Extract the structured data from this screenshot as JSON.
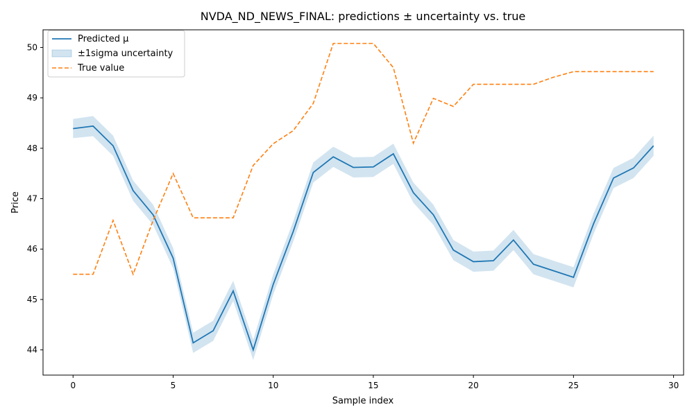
{
  "chart_data": {
    "type": "line",
    "title": "NVDA_ND_NEWS_FINAL: predictions ± uncertainty vs. true",
    "xlabel": "Sample index",
    "ylabel": "Price",
    "xlim": [
      -1.5,
      30.5
    ],
    "ylim": [
      43.5,
      50.35
    ],
    "x_ticks": [
      0,
      5,
      10,
      15,
      20,
      25,
      30
    ],
    "y_ticks": [
      44,
      45,
      46,
      47,
      48,
      49,
      50
    ],
    "grid": false,
    "legend_position": "top-left",
    "x": [
      0,
      1,
      2,
      3,
      4,
      5,
      6,
      7,
      8,
      9,
      10,
      11,
      12,
      13,
      14,
      15,
      16,
      17,
      18,
      19,
      20,
      21,
      22,
      23,
      24,
      25,
      26,
      27,
      28,
      29
    ],
    "series": [
      {
        "name": "Predicted μ",
        "style": "solid",
        "color": "#1f77b4",
        "values": [
          48.39,
          48.44,
          48.05,
          47.16,
          46.68,
          45.82,
          44.14,
          44.38,
          45.17,
          44.0,
          45.3,
          46.35,
          47.52,
          47.83,
          47.62,
          47.63,
          47.89,
          47.12,
          46.68,
          45.98,
          45.75,
          45.77,
          46.18,
          45.7,
          45.57,
          45.44,
          46.5,
          47.41,
          47.61,
          48.05
        ]
      },
      {
        "name": "±1sigma uncertainty",
        "style": "band",
        "color": "#1f77b4",
        "lower": [
          48.2,
          48.24,
          47.85,
          46.96,
          46.48,
          45.62,
          43.94,
          44.18,
          44.97,
          43.8,
          45.1,
          46.15,
          47.32,
          47.63,
          47.42,
          47.43,
          47.69,
          46.92,
          46.48,
          45.78,
          45.55,
          45.57,
          45.98,
          45.5,
          45.37,
          45.24,
          46.3,
          47.21,
          47.41,
          47.85
        ],
        "upper": [
          48.58,
          48.64,
          48.25,
          47.36,
          46.88,
          46.02,
          44.34,
          44.58,
          45.37,
          44.2,
          45.5,
          46.55,
          47.72,
          48.03,
          47.82,
          47.83,
          48.09,
          47.32,
          46.88,
          46.18,
          45.95,
          45.97,
          46.38,
          45.9,
          45.77,
          45.64,
          46.7,
          47.61,
          47.81,
          48.25
        ]
      },
      {
        "name": "True value",
        "style": "dashed",
        "color": "#ff7f0e",
        "values": [
          45.5,
          45.5,
          46.57,
          45.5,
          46.57,
          47.5,
          46.62,
          46.62,
          46.62,
          47.66,
          48.09,
          48.35,
          48.89,
          50.08,
          50.08,
          50.08,
          49.6,
          48.1,
          48.99,
          48.83,
          49.27,
          49.27,
          49.27,
          49.27,
          49.41,
          49.52,
          49.52,
          49.52,
          49.52,
          49.52
        ]
      }
    ]
  }
}
